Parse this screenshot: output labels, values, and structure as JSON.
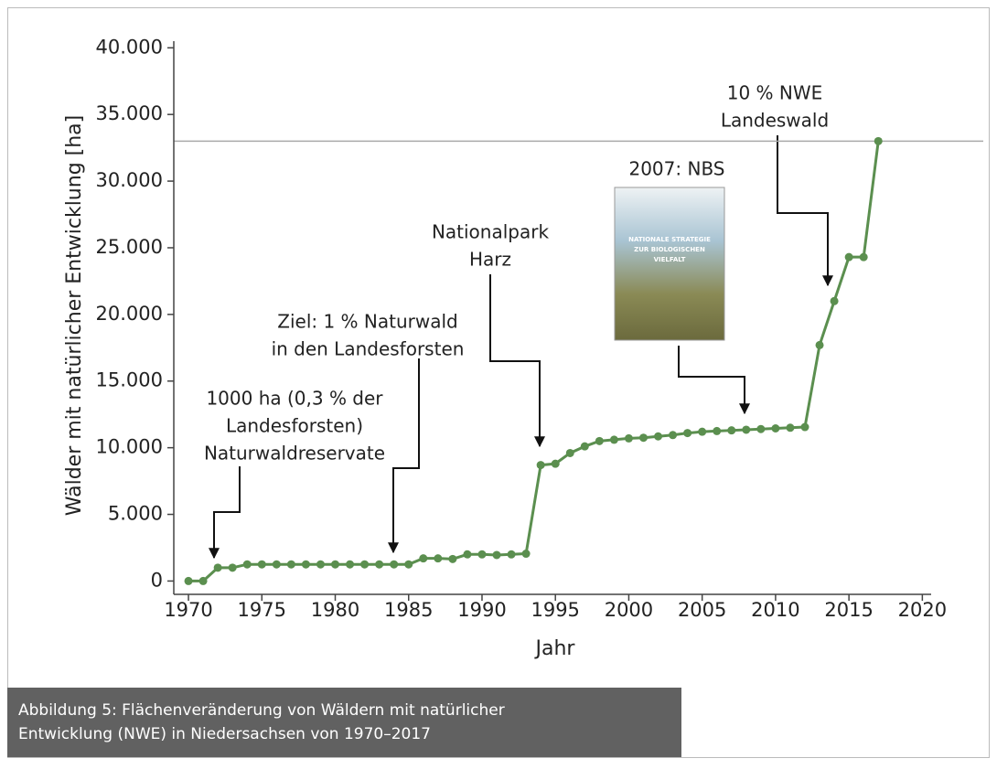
{
  "chart_data": {
    "type": "line",
    "xlabel": "Jahr",
    "ylabel": "Wälder mit natürlicher Entwicklung [ha]",
    "x": [
      1970,
      1971,
      1972,
      1973,
      1974,
      1975,
      1976,
      1977,
      1978,
      1979,
      1980,
      1981,
      1982,
      1983,
      1984,
      1985,
      1986,
      1987,
      1988,
      1989,
      1990,
      1991,
      1992,
      1993,
      1994,
      1995,
      1996,
      1997,
      1998,
      1999,
      2000,
      2001,
      2002,
      2003,
      2004,
      2005,
      2006,
      2007,
      2008,
      2009,
      2010,
      2011,
      2012,
      2013,
      2014,
      2015,
      2016,
      2017
    ],
    "series": [
      {
        "color": "#5b8f4f",
        "values": [
          0,
          0,
          1000,
          1000,
          1250,
          1250,
          1250,
          1250,
          1250,
          1250,
          1250,
          1250,
          1250,
          1250,
          1250,
          1250,
          1700,
          1700,
          1650,
          2000,
          2000,
          1950,
          2000,
          2050,
          8700,
          8800,
          9600,
          10100,
          10500,
          10600,
          10700,
          10750,
          10850,
          10950,
          11100,
          11200,
          11250,
          11300,
          11350,
          11400,
          11450,
          11500,
          11550,
          17700,
          21000,
          24300,
          24300,
          33000
        ]
      }
    ],
    "reference_line": 33000,
    "xlim": [
      1969,
      2020.6
    ],
    "ylim": [
      -1000,
      40500
    ],
    "xticks": [
      1970,
      1975,
      1980,
      1985,
      1990,
      1995,
      2000,
      2005,
      2010,
      2015,
      2020
    ],
    "yticks": [
      0,
      {
        "value": 5000,
        "label": "5.000"
      },
      {
        "value": 10000,
        "label": "10.000"
      },
      {
        "value": 15000,
        "label": "15.000"
      },
      {
        "value": 20000,
        "label": "20.000"
      },
      {
        "value": 25000,
        "label": "25.000"
      },
      {
        "value": 30000,
        "label": "30.000"
      },
      {
        "value": 35000,
        "label": "35.000"
      },
      {
        "value": 40000,
        "label": "40.000"
      }
    ],
    "annotations": [
      {
        "lines": [
          "1000 ha (0,3 % der",
          "Landesforsten)",
          "Naturwaldreservate"
        ]
      },
      {
        "lines": [
          "Ziel: 1 % Naturwald",
          "in den Landesforsten"
        ]
      },
      {
        "lines": [
          "Nationalpark",
          "Harz"
        ]
      },
      {
        "lines": [
          "2007: NBS"
        ]
      },
      {
        "lines": [
          "10 % NWE",
          "Landeswald"
        ]
      }
    ],
    "cover_text": [
      "NATIONALE STRATEGIE",
      "ZUR BIOLOGISCHEN",
      "VIELFALT"
    ],
    "caption": [
      "Abbildung 5: Flächenveränderung von Wäldern mit natürlicher",
      "Entwicklung (NWE) in Niedersachsen von 1970–2017"
    ]
  }
}
